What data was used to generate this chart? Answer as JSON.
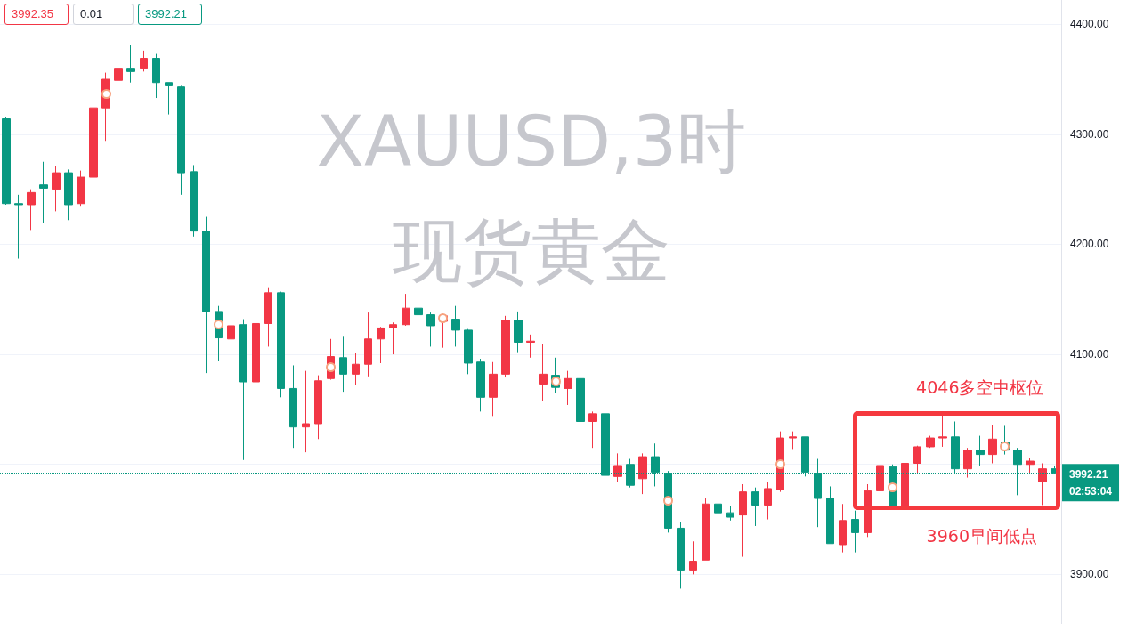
{
  "chart_data": {
    "type": "candlestick",
    "title": "XAUUSD,3时",
    "subtitle": "现货黄金",
    "categories": [
      null,
      null,
      null,
      null,
      null,
      null,
      null,
      null,
      null,
      null,
      null,
      null,
      null,
      null,
      null,
      null,
      null,
      null,
      null,
      null,
      null,
      null,
      null,
      null,
      null,
      null,
      null,
      null,
      null,
      null,
      null,
      null,
      null,
      null,
      null,
      null,
      null,
      null,
      null,
      null,
      null,
      null,
      null,
      null,
      null,
      null,
      null,
      null,
      null,
      null,
      null,
      null,
      null,
      null,
      null,
      null,
      null,
      null,
      null,
      null,
      null,
      null,
      null,
      null,
      null,
      null,
      null,
      null,
      null,
      null,
      null,
      null,
      null,
      null,
      null,
      null,
      null,
      null,
      null,
      null,
      null,
      null,
      null,
      null,
      null
    ],
    "ohlc": [
      [
        4314,
        4316,
        4236,
        4237
      ],
      [
        4237,
        4245,
        4187,
        4236
      ],
      [
        4236,
        4250,
        4213,
        4247
      ],
      [
        4254,
        4275,
        4219,
        4251
      ],
      [
        4250,
        4271,
        4230,
        4265
      ],
      [
        4265,
        4268,
        4222,
        4236
      ],
      [
        4237,
        4267,
        4235,
        4261
      ],
      [
        4261,
        4327,
        4247,
        4324
      ],
      [
        4324,
        4356,
        4294,
        4350
      ],
      [
        4349,
        4365,
        4338,
        4360
      ],
      [
        4360,
        4381,
        4347,
        4357
      ],
      [
        4360,
        4376,
        4357,
        4369
      ],
      [
        4369,
        4373,
        4333,
        4347
      ],
      [
        4347,
        4347,
        4318,
        4344
      ],
      [
        4343,
        4344,
        4245,
        4265
      ],
      [
        4266,
        4272,
        4207,
        4212
      ],
      [
        4212,
        4225,
        4083,
        4139
      ],
      [
        4139,
        4144,
        4094,
        4115
      ],
      [
        4114,
        4131,
        4101,
        4126
      ],
      [
        4127,
        4132,
        4004,
        4075
      ],
      [
        4075,
        4144,
        4065,
        4128
      ],
      [
        4128,
        4161,
        4107,
        4156
      ],
      [
        4156,
        4157,
        4061,
        4069
      ],
      [
        4069,
        4090,
        4015,
        4034
      ],
      [
        4034,
        4085,
        4011,
        4037
      ],
      [
        4037,
        4081,
        4023,
        4076
      ],
      [
        4078,
        4114,
        4077,
        4098
      ],
      [
        4097,
        4116,
        4066,
        4082
      ],
      [
        4082,
        4101,
        4072,
        4091
      ],
      [
        4091,
        4138,
        4080,
        4114
      ],
      [
        4114,
        4125,
        4092,
        4124
      ],
      [
        4124,
        4129,
        4100,
        4127
      ],
      [
        4127,
        4155,
        4126,
        4142
      ],
      [
        4142,
        4148,
        4125,
        4136
      ],
      [
        4136,
        4138,
        4107,
        4126
      ],
      [
        4130,
        4136,
        4106,
        4135
      ],
      [
        4132,
        4144,
        4107,
        4122
      ],
      [
        4122,
        4123,
        4082,
        4092
      ],
      [
        4093,
        4096,
        4048,
        4061
      ],
      [
        4061,
        4093,
        4044,
        4082
      ],
      [
        4082,
        4135,
        4079,
        4131
      ],
      [
        4131,
        4139,
        4102,
        4111
      ],
      [
        4111,
        4118,
        4097,
        4112
      ],
      [
        4073,
        4109,
        4058,
        4082
      ],
      [
        4081,
        4097,
        4065,
        4070
      ],
      [
        4069,
        4085,
        4054,
        4078
      ],
      [
        4078,
        4080,
        4024,
        4039
      ],
      [
        4039,
        4048,
        4015,
        4046
      ],
      [
        4046,
        4050,
        3972,
        3990
      ],
      [
        3989,
        4010,
        3984,
        3999
      ],
      [
        4000,
        4005,
        3979,
        3981
      ],
      [
        3987,
        4010,
        3973,
        4007
      ],
      [
        4007,
        4019,
        3980,
        3993
      ],
      [
        3992,
        3994,
        3938,
        3942
      ],
      [
        3942,
        3948,
        3887,
        3904
      ],
      [
        3904,
        3930,
        3900,
        3912
      ],
      [
        3913,
        3969,
        3913,
        3964
      ],
      [
        3964,
        3970,
        3945,
        3956
      ],
      [
        3956,
        3962,
        3949,
        3952
      ],
      [
        3954,
        3982,
        3916,
        3975
      ],
      [
        3975,
        3979,
        3944,
        3963
      ],
      [
        3963,
        3984,
        3950,
        3978
      ],
      [
        3977,
        4030,
        3975,
        4024
      ],
      [
        4024,
        4030,
        4014,
        4025
      ],
      [
        4025,
        4025,
        3989,
        3993
      ],
      [
        3992,
        4005,
        3943,
        3969
      ],
      [
        3969,
        3980,
        3928,
        3928
      ],
      [
        3927,
        3964,
        3920,
        3949
      ],
      [
        3950,
        3958,
        3920,
        3938
      ],
      [
        3938,
        3982,
        3934,
        3976
      ],
      [
        3976,
        4011,
        3956,
        3999
      ],
      [
        3998,
        4000,
        3960,
        3961
      ],
      [
        3959,
        4014,
        3958,
        4001
      ],
      [
        4001,
        4017,
        3991,
        4016
      ],
      [
        4016,
        4026,
        4015,
        4024
      ],
      [
        4024,
        4047,
        4016,
        4025
      ],
      [
        4025,
        4039,
        3991,
        3996
      ],
      [
        3996,
        4015,
        3988,
        4013
      ],
      [
        4013,
        4026,
        3999,
        4009
      ],
      [
        4009,
        4036,
        4001,
        4023
      ],
      [
        4020,
        4035,
        4009,
        4013
      ],
      [
        4013,
        4015,
        3972,
        4000
      ],
      [
        4000,
        4006,
        3991,
        4003
      ],
      [
        3984,
        4001,
        3963,
        3996
      ],
      [
        3996,
        3999,
        3991,
        3992.21
      ]
    ],
    "colors": [
      "#089981",
      "#089981",
      "#f23645",
      "#089981",
      "#f23645",
      "#089981",
      "#f23645",
      "#f23645",
      "#f23645",
      "#f23645",
      "#089981",
      "#f23645",
      "#089981",
      "#089981",
      "#089981",
      "#089981",
      "#089981",
      "#089981",
      "#f23645",
      "#089981",
      "#f23645",
      "#f23645",
      "#089981",
      "#089981",
      "#f23645",
      "#f23645",
      "#f23645",
      "#089981",
      "#f23645",
      "#f23645",
      "#f23645",
      "#f23645",
      "#f23645",
      "#089981",
      "#089981",
      "#f23645",
      "#089981",
      "#089981",
      "#089981",
      "#f23645",
      "#f23645",
      "#089981",
      "#f23645",
      "#f23645",
      "#089981",
      "#f23645",
      "#089981",
      "#f23645",
      "#089981",
      "#f23645",
      "#089981",
      "#f23645",
      "#089981",
      "#089981",
      "#089981",
      "#f23645",
      "#f23645",
      "#089981",
      "#089981",
      "#f23645",
      "#089981",
      "#f23645",
      "#f23645",
      "#f23645",
      "#089981",
      "#089981",
      "#089981",
      "#f23645",
      "#089981",
      "#f23645",
      "#f23645",
      "#089981",
      "#f23645",
      "#f23645",
      "#f23645",
      "#f23645",
      "#089981",
      "#f23645",
      "#089981",
      "#f23645",
      "#089981",
      "#089981",
      "#f23645",
      "#f23645",
      "#089981"
    ],
    "ylim": [
      3855,
      4422
    ],
    "yticks": [
      {
        "value": 3900,
        "label": "3900.00"
      },
      {
        "value": 4000,
        "label": null
      },
      {
        "value": 4100,
        "label": "4100.00"
      },
      {
        "value": 4200,
        "label": "4200.00"
      },
      {
        "value": 4300,
        "label": "4300.00"
      },
      {
        "value": 4400,
        "label": "4400.00"
      }
    ],
    "grid": "y",
    "tick_labels": "y",
    "ref_lines": [
      {
        "axis": "y",
        "value": 3992.21,
        "label": "3992.21\n02:53:04",
        "color": "#089981",
        "line_style": "dotted"
      }
    ],
    "annotations": [
      "3992.35",
      "0.01",
      "3992.21",
      "4046多空中枢位",
      "3960早间低点"
    ]
  }
}
